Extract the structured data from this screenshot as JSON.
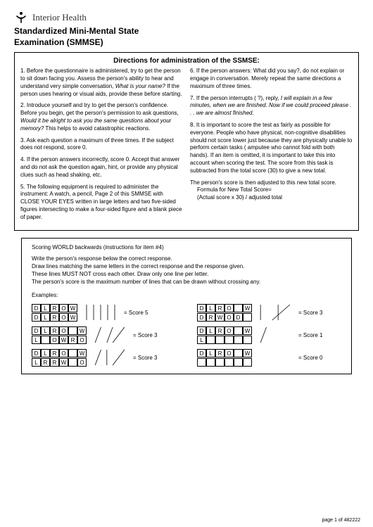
{
  "logo": {
    "brand": "Interior Health"
  },
  "title_line1": "Standardized Mini-Mental State",
  "title_line2": "Examination (SMMSE)",
  "directions_heading": "Directions for administration of the SSMSE:",
  "left_items": [
    {
      "n": "1.",
      "text": "Before the questionnaire is administered, try to get the person to sit down facing you. Assess the person's ability to hear and understand very simple conversation,",
      "ital": "What is your name?",
      "tail": " If the person uses hearing or visual aids, provide these before starting."
    },
    {
      "n": "2.",
      "text": "Introduce yourself and try to get the person's confidence. Before you begin, get the person's permission to ask questions,",
      "ital": "Would it be alright to ask you the same questions about your memory?",
      "tail": " This helps to avoid catastrophic reactions."
    },
    {
      "n": "3.",
      "text": "Ask each question a maximum of three times. If the subject does not respond, score 0.",
      "ital": "",
      "tail": ""
    },
    {
      "n": "4.",
      "text": "If the person answers incorrectly, score 0. Accept that answer and do not ask the question again, hint, or provide any physical clues such as head shaking, etc.",
      "ital": "",
      "tail": ""
    },
    {
      "n": "5.",
      "text": "The following equipment is required to administer the instrument: A watch, a pencil, Page 2 of this SMMSE with CLOSE YOUR EYES written in large letters and two five-sided figures intersecting to make a four-sided figure and a blank piece of paper.",
      "ital": "",
      "tail": ""
    }
  ],
  "right_items": [
    {
      "n": "6.",
      "text": "If the person answers: What did you say?, do not explain or engage in conversation. Merely repeat the same directions a maximum of three times.",
      "ital": "",
      "tail": ""
    },
    {
      "n": "7.",
      "text": "If the person interrupts ( ?), reply,",
      "ital": "I will explain in a few minutes, when we are finished. Now if we could proceed please . . . we are almost finished.",
      "tail": ""
    },
    {
      "n": "8.",
      "text": "It is important to score the test as fairly as possible for everyone. People who have physical, non-cognitive disabilities should not score lower just because they are physically unable to perform certain tasks ( amputee who cannot fold with both hands). If an item is omitted, it is important to take this into account when scoring the test. The score from this task is subtracted from the total score (30) to give a new total.",
      "ital": "",
      "tail": ""
    }
  ],
  "formula_intro": "The person's score is then adjusted to this new total score.",
  "formula_l1": "Formula for New Total Score=",
  "formula_l2": "(Actual score x 30) / adjusted total",
  "scoring": {
    "heading": "Scoring WORLD backwards (instructions for item #4)",
    "l1": "Write the person's response below the correct response.",
    "l2": "Draw lines matching the same letters in the correct response and the response given.",
    "l3": "These lines MUST NOT cross each other. Draw only one line per letter.",
    "l4": "The person's score is the maximum number of lines that can be drawn without crossing any.",
    "examples_label": "Examples:"
  },
  "examples": [
    {
      "top": [
        "D",
        "L",
        "R",
        "O",
        "W"
      ],
      "bot": [
        "D",
        "L",
        "R",
        "O",
        "W"
      ],
      "score": "= Score 5",
      "lines": [
        [
          0,
          0
        ],
        [
          1,
          1
        ],
        [
          2,
          2
        ],
        [
          3,
          3
        ],
        [
          4,
          4
        ]
      ]
    },
    {
      "top": [
        "D",
        "L",
        "R",
        "O",
        "",
        "W"
      ],
      "bot": [
        "D",
        "R",
        "W",
        "O",
        "D",
        ""
      ],
      "score": "= Score 3",
      "lines": [
        [
          0,
          0
        ],
        [
          3,
          3
        ],
        [
          5,
          2
        ]
      ]
    },
    {
      "top": [
        "D",
        "L",
        "R",
        "O",
        "",
        "W"
      ],
      "bot": [
        "L",
        "",
        "O",
        "W",
        "R",
        "O"
      ],
      "score": "= Score 3",
      "lines": [
        [
          1,
          0
        ],
        [
          3,
          2
        ],
        [
          5,
          3
        ]
      ]
    },
    {
      "top": [
        "D",
        "L",
        "R",
        "O",
        "",
        "W"
      ],
      "bot": [
        "L",
        "",
        "",
        "",
        "",
        ""
      ],
      "score": "= Score 1",
      "lines": [
        [
          1,
          0
        ]
      ]
    },
    {
      "top": [
        "D",
        "L",
        "R",
        "O",
        "",
        "W"
      ],
      "bot": [
        "L",
        "R",
        "R",
        "W",
        "",
        "O"
      ],
      "score": "= Score 3",
      "lines": [
        [
          1,
          0
        ],
        [
          2,
          2
        ],
        [
          5,
          3
        ]
      ]
    },
    {
      "top": [
        "D",
        "L",
        "R",
        "O",
        "",
        "W"
      ],
      "bot": [
        "",
        "",
        "",
        "",
        "",
        ""
      ],
      "score": "= Score 0",
      "lines": []
    }
  ],
  "page_footer": "page 1 of 482222"
}
